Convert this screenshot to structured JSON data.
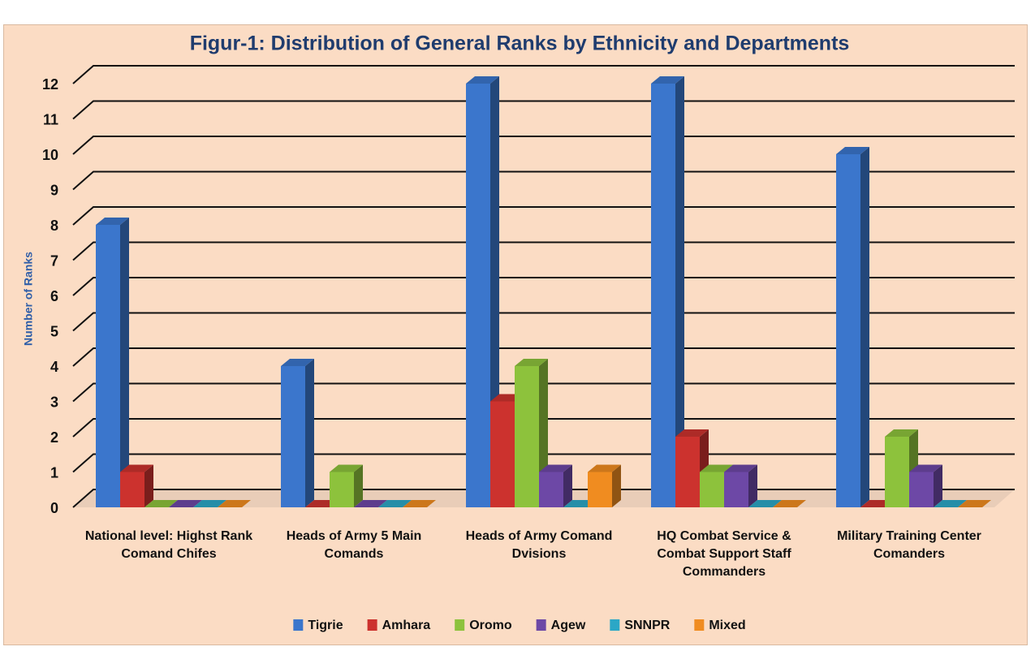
{
  "chart_data": {
    "type": "bar3d",
    "title": "Figur-1: Distribution of General Ranks by Ethnicity and Departments",
    "ylabel": "Number of Ranks",
    "categories": [
      "National level: Highst Rank Comand Chifes",
      "Heads of Army 5 Main Comands",
      "Heads of Army Comand Dvisions",
      "HQ Combat Service & Combat Support Staff Commanders",
      "Military Training Center Comanders"
    ],
    "series": [
      {
        "name": "Tigrie",
        "color": "#3b76cc",
        "values": [
          8,
          4,
          12,
          12,
          10
        ]
      },
      {
        "name": "Amhara",
        "color": "#cc322e",
        "values": [
          1,
          0,
          3,
          2,
          0
        ]
      },
      {
        "name": "Oromo",
        "color": "#8dc23c",
        "values": [
          0,
          1,
          4,
          1,
          2
        ]
      },
      {
        "name": "Agew",
        "color": "#6d48a6",
        "values": [
          0,
          0,
          1,
          1,
          1
        ]
      },
      {
        "name": "SNNPR",
        "color": "#2ba7c6",
        "values": [
          0,
          0,
          0,
          0,
          0
        ]
      },
      {
        "name": "Mixed",
        "color": "#f08c20",
        "values": [
          0,
          0,
          1,
          0,
          0
        ]
      }
    ],
    "ylim": [
      0,
      12
    ],
    "yticks": [
      0,
      1,
      2,
      3,
      4,
      5,
      6,
      7,
      8,
      9,
      10,
      11,
      12
    ],
    "grid": true,
    "legend": "bottom"
  }
}
